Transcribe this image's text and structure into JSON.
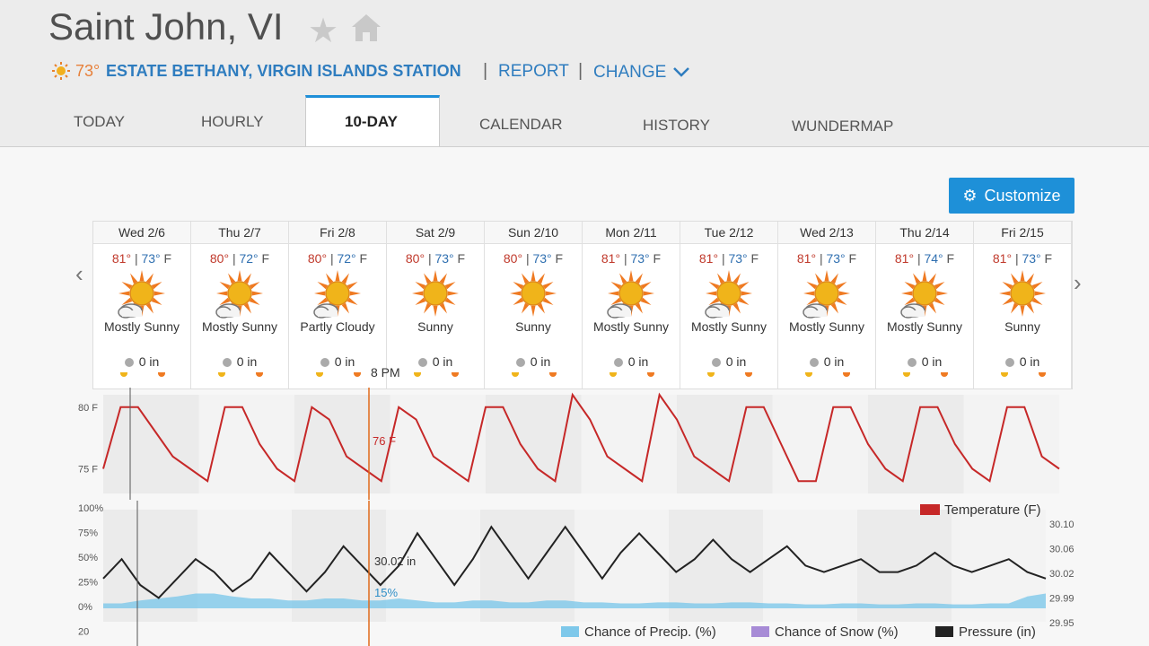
{
  "header": {
    "title": "Saint John, VI",
    "station_temp": "73°",
    "station_name": "ESTATE BETHANY, VIRGIN ISLANDS STATION",
    "separator": "|",
    "report_label": "REPORT",
    "change_label": "CHANGE"
  },
  "tabs": [
    {
      "label": "TODAY"
    },
    {
      "label": "HOURLY"
    },
    {
      "label": "10-DAY",
      "active": true
    },
    {
      "label": "CALENDAR"
    },
    {
      "label": "HISTORY"
    },
    {
      "label": "WUNDERMAP"
    }
  ],
  "customize_label": "Customize",
  "forecast": [
    {
      "date": "Wed 2/6",
      "hi": "81°",
      "lo": "73°",
      "unit": "F",
      "cond": "Mostly Sunny",
      "icon": "mostly-sunny",
      "precip": "0 in"
    },
    {
      "date": "Thu 2/7",
      "hi": "80°",
      "lo": "72°",
      "unit": "F",
      "cond": "Mostly Sunny",
      "icon": "mostly-sunny",
      "precip": "0 in"
    },
    {
      "date": "Fri 2/8",
      "hi": "80°",
      "lo": "72°",
      "unit": "F",
      "cond": "Partly Cloudy",
      "icon": "partly-cloudy",
      "precip": "0 in"
    },
    {
      "date": "Sat 2/9",
      "hi": "80°",
      "lo": "73°",
      "unit": "F",
      "cond": "Sunny",
      "icon": "sunny",
      "precip": "0 in"
    },
    {
      "date": "Sun 2/10",
      "hi": "80°",
      "lo": "73°",
      "unit": "F",
      "cond": "Sunny",
      "icon": "sunny",
      "precip": "0 in"
    },
    {
      "date": "Mon 2/11",
      "hi": "81°",
      "lo": "73°",
      "unit": "F",
      "cond": "Mostly Sunny",
      "icon": "mostly-sunny",
      "precip": "0 in"
    },
    {
      "date": "Tue 2/12",
      "hi": "81°",
      "lo": "73°",
      "unit": "F",
      "cond": "Mostly Sunny",
      "icon": "mostly-sunny",
      "precip": "0 in"
    },
    {
      "date": "Wed 2/13",
      "hi": "81°",
      "lo": "73°",
      "unit": "F",
      "cond": "Mostly Sunny",
      "icon": "mostly-sunny",
      "precip": "0 in"
    },
    {
      "date": "Thu 2/14",
      "hi": "81°",
      "lo": "74°",
      "unit": "F",
      "cond": "Mostly Sunny",
      "icon": "mostly-sunny",
      "precip": "0 in"
    },
    {
      "date": "Fri 2/15",
      "hi": "81°",
      "lo": "73°",
      "unit": "F",
      "cond": "Sunny",
      "icon": "sunny",
      "precip": "0 in"
    }
  ],
  "cursor": {
    "time_label": "8 PM",
    "temp_label": "76 F",
    "pressure_label": "30.02 in",
    "precip_label": "15%"
  },
  "colors": {
    "accent": "#1e90d8",
    "link": "#2f7dbf",
    "temperature": "#c62828",
    "pressure": "#222222",
    "precip": "#7ec8ea",
    "snow": "#a78bd6",
    "cursor": "#e06a1a"
  },
  "chart_data": [
    {
      "type": "line",
      "series": [
        {
          "name": "Temperature (F)",
          "values": [
            75,
            80,
            80,
            78,
            76,
            75,
            74,
            80,
            80,
            77,
            75,
            74,
            80,
            79,
            76,
            75,
            74,
            80,
            79,
            76,
            75,
            74,
            80,
            80,
            77,
            75,
            74,
            81,
            79,
            76,
            75,
            74,
            81,
            79,
            76,
            75,
            74,
            80,
            80,
            77,
            74,
            74,
            80,
            80,
            77,
            75,
            74,
            80,
            80,
            77,
            75,
            74,
            80,
            80,
            76,
            75
          ]
        }
      ],
      "y_ticks": [
        "80 F",
        "75 F"
      ],
      "ylim": [
        73,
        81
      ],
      "legend": "Temperature (F)"
    },
    {
      "type": "line",
      "series": [
        {
          "name": "Pressure (in)",
          "values": [
            30.01,
            30.04,
            30.0,
            29.98,
            30.01,
            30.04,
            30.02,
            29.99,
            30.01,
            30.05,
            30.02,
            29.99,
            30.02,
            30.06,
            30.03,
            30.0,
            30.03,
            30.08,
            30.04,
            30.0,
            30.04,
            30.09,
            30.05,
            30.01,
            30.05,
            30.09,
            30.05,
            30.01,
            30.05,
            30.08,
            30.05,
            30.02,
            30.04,
            30.07,
            30.04,
            30.02,
            30.04,
            30.06,
            30.03,
            30.02,
            30.03,
            30.04,
            30.02,
            30.02,
            30.03,
            30.05,
            30.03,
            30.02,
            30.03,
            30.04,
            30.02,
            30.01
          ]
        },
        {
          "name": "Chance of Precip. (%)",
          "values": [
            5,
            5,
            8,
            10,
            12,
            15,
            15,
            12,
            10,
            10,
            8,
            8,
            10,
            10,
            8,
            8,
            10,
            8,
            6,
            6,
            8,
            8,
            6,
            6,
            8,
            8,
            6,
            6,
            5,
            5,
            6,
            6,
            5,
            5,
            6,
            6,
            5,
            5,
            4,
            4,
            5,
            5,
            4,
            4,
            5,
            5,
            4,
            4,
            5,
            5,
            12,
            15
          ]
        },
        {
          "name": "Chance of Snow (%)",
          "values": [
            0,
            0
          ]
        }
      ],
      "y_left_ticks": [
        "100%",
        "75%",
        "50%",
        "25%",
        "0%",
        "20"
      ],
      "y_right_ticks": [
        "30.10",
        "30.06",
        "30.02",
        "29.99",
        "29.95"
      ],
      "legend": [
        "Chance of Precip. (%)",
        "Chance of Snow (%)",
        "Pressure (in)"
      ]
    }
  ]
}
